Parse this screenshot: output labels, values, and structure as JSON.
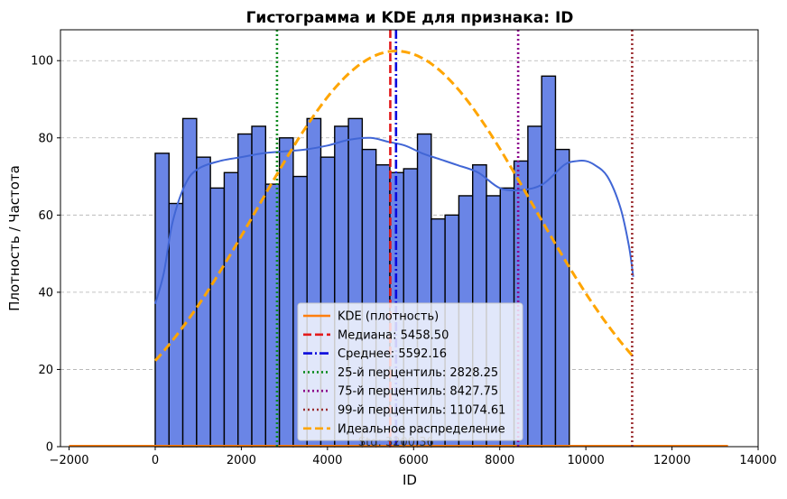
{
  "chart_data": {
    "type": "bar",
    "title": "Гистограмма и KDE для признака: ID",
    "xlabel": "ID",
    "ylabel": "Плотность / Частота",
    "xlim": [
      -2200,
      14000
    ],
    "ylim": [
      0,
      108
    ],
    "x_ticks": [
      -2000,
      0,
      2000,
      4000,
      6000,
      8000,
      10000,
      12000,
      14000
    ],
    "y_ticks": [
      0,
      20,
      40,
      60,
      80,
      100
    ],
    "grid": "y-dashed",
    "legend_position": "lower center",
    "colors": {
      "bars": "#6a85e6",
      "bar_edge": "#000000",
      "kde": "#4166d5",
      "kde_legend": "#ff7f0e",
      "median": "#e31a1c",
      "mean": "#0a0adc",
      "p25": "#0a8a1e",
      "p75": "#8b008b",
      "p99": "#9b2d30",
      "ideal": "#ffa500"
    },
    "histogram": {
      "bin_start": 0,
      "bin_width": 320.5,
      "counts": [
        76,
        63,
        85,
        75,
        67,
        71,
        81,
        83,
        68,
        80,
        70,
        85,
        75,
        83,
        85,
        77,
        73,
        71,
        72,
        81,
        59,
        60,
        65,
        73,
        65,
        67,
        74,
        83,
        96,
        77
      ]
    },
    "kde": {
      "x": [
        0,
        200,
        400,
        700,
        1000,
        1500,
        2000,
        2500,
        3000,
        3500,
        4000,
        4500,
        5000,
        5400,
        5800,
        6200,
        6600,
        7000,
        7500,
        8000,
        8500,
        9000,
        9500,
        9800,
        10000,
        10200,
        10500,
        10800,
        11000,
        11100
      ],
      "y": [
        37,
        45,
        58,
        68,
        72,
        74,
        75,
        76,
        76.5,
        77,
        78,
        79.5,
        80,
        79,
        78,
        76,
        74.5,
        73,
        71,
        67,
        66.5,
        68,
        73,
        74,
        74,
        73,
        70,
        62,
        52,
        44
      ]
    },
    "ideal_curve": {
      "mean": 5592.16,
      "std": 3200,
      "peak": 102.5,
      "x_range": [
        0,
        11100
      ]
    },
    "flat_line": {
      "x_range": [
        -2000,
        13300
      ],
      "y": 0.3
    },
    "vlines": [
      {
        "key": "median",
        "x": 5458.5,
        "style": "dashed"
      },
      {
        "key": "mean",
        "x": 5592.16,
        "style": "dashdot"
      },
      {
        "key": "p25",
        "x": 2828.25,
        "style": "dotted"
      },
      {
        "key": "p75",
        "x": 8427.75,
        "style": "dotted"
      },
      {
        "key": "p99",
        "x": 11074.61,
        "style": "dotted"
      }
    ],
    "legend": [
      {
        "label": "KDE (плотность)",
        "color_key": "kde_legend",
        "style": "solid"
      },
      {
        "label": "Медиана: 5458.50",
        "color_key": "median",
        "style": "dashed"
      },
      {
        "label": "Среднее: 5592.16",
        "color_key": "mean",
        "style": "dashdot"
      },
      {
        "label": "25-й перцентиль: 2828.25",
        "color_key": "p25",
        "style": "dotted"
      },
      {
        "label": "75-й перцентиль: 8427.75",
        "color_key": "p75",
        "style": "dotted"
      },
      {
        "label": "99-й перцентиль: 11074.61",
        "color_key": "p99",
        "style": "dotted"
      },
      {
        "label": "Идеальное распределение",
        "color_key": "ideal",
        "style": "dashed"
      }
    ],
    "annotation": "Std: 3200.36"
  }
}
